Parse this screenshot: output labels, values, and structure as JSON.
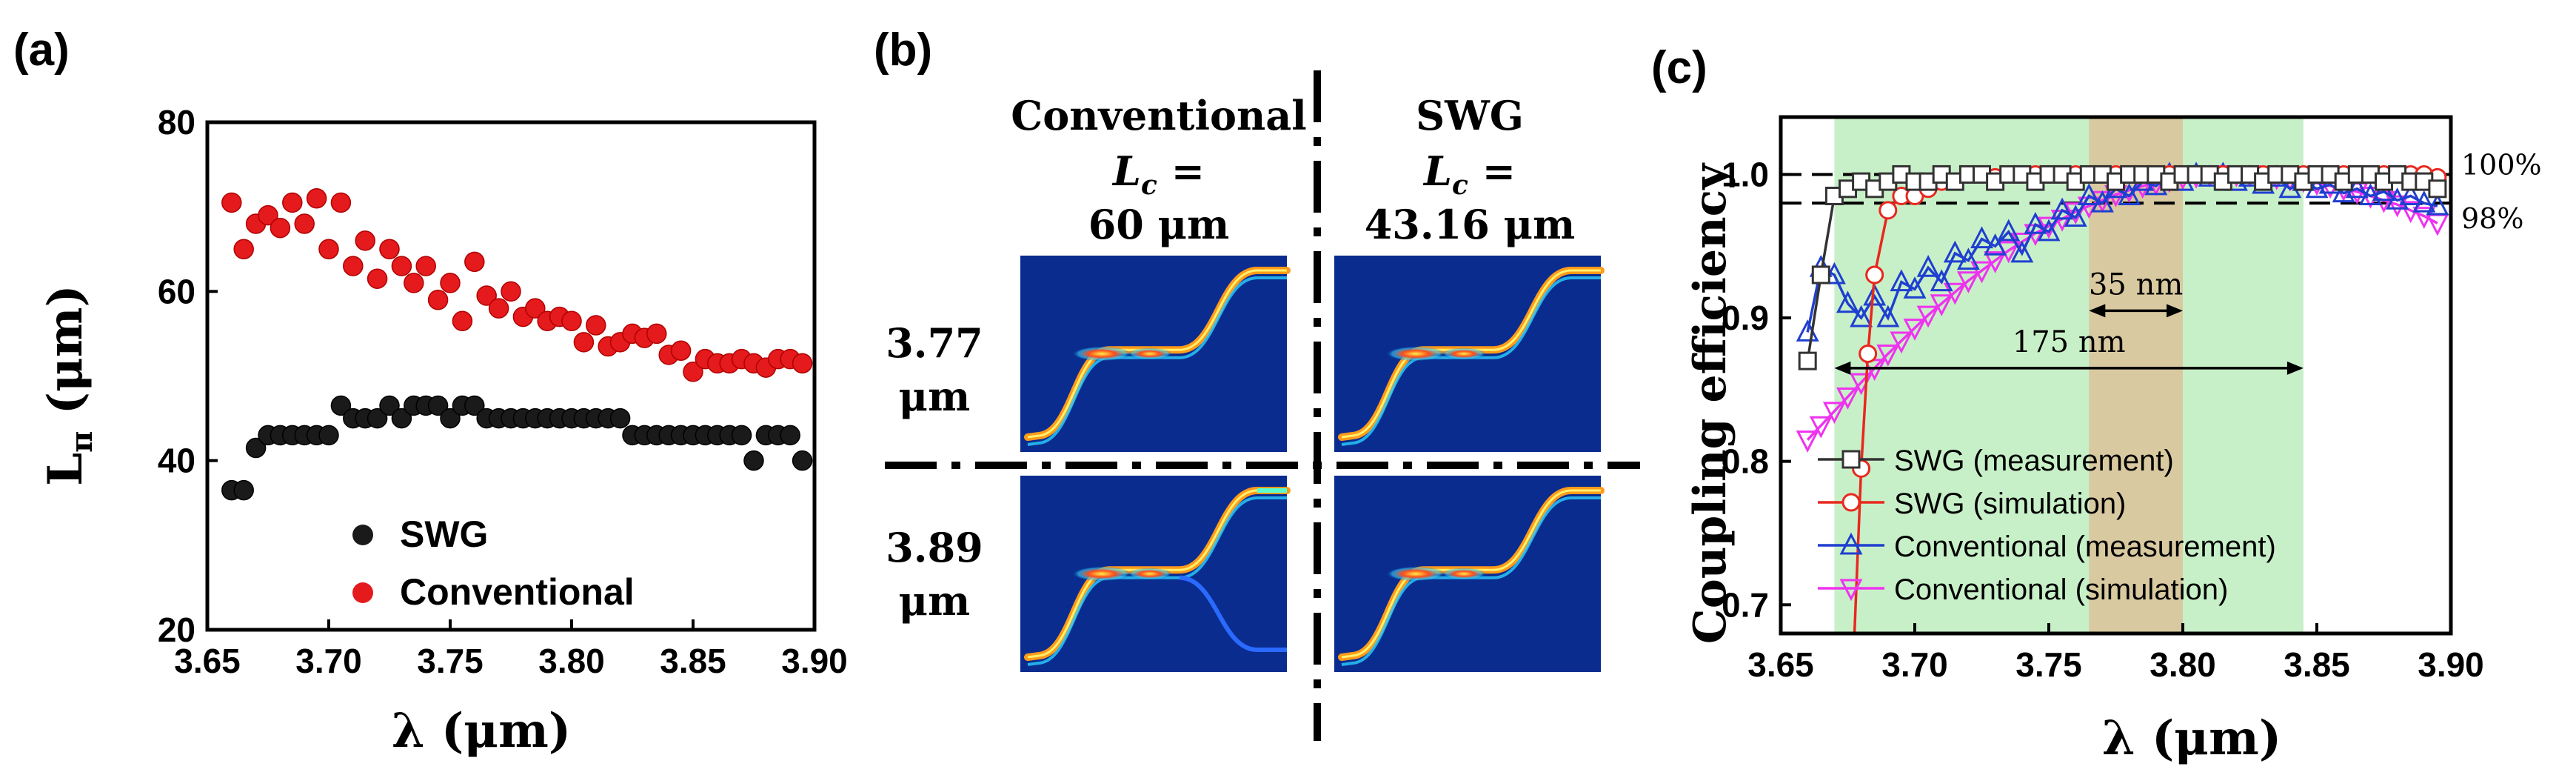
{
  "panels": {
    "a": {
      "label": "(a)"
    },
    "b": {
      "label": "(b)"
    },
    "c": {
      "label": "(c)"
    }
  },
  "colors": {
    "swg_a": "#1a1a1a",
    "conv_a": "#e41a1c",
    "swg_meas": "#333333",
    "swg_sim": "#e8281e",
    "conv_meas": "#1f3fd0",
    "conv_sim": "#ee33ee",
    "band_green": "#c8f0c8",
    "band_tan": "#d9c9a0",
    "field_bg": "#0a2c8f"
  },
  "panel_b": {
    "conventional": {
      "title": "Conventional",
      "lc_var": "L",
      "lc_sub": "c",
      "lc_eq": " =",
      "lc_val": "60 μm"
    },
    "swg": {
      "title": "SWG",
      "lc_var": "L",
      "lc_sub": "c",
      "lc_eq": " =",
      "lc_val": "43.16 μm"
    },
    "rows": [
      {
        "wl": "3.77",
        "unit": "μm"
      },
      {
        "wl": "3.89",
        "unit": "μm"
      }
    ]
  },
  "chart_data": [
    {
      "type": "scatter",
      "panel": "a",
      "xlabel": "λ (μm)",
      "ylabel_main": "L",
      "ylabel_sub": "π",
      "ylabel_unit": " (μm)",
      "xlim": [
        3.65,
        3.9
      ],
      "ylim": [
        20,
        80
      ],
      "xticks": [
        "3.65",
        "3.70",
        "3.75",
        "3.80",
        "3.85",
        "3.90"
      ],
      "yticks": [
        "20",
        "40",
        "60",
        "80"
      ],
      "legend_position": "bottom-left",
      "series": [
        {
          "name": "SWG",
          "x": [
            3.66,
            3.665,
            3.67,
            3.675,
            3.68,
            3.685,
            3.69,
            3.695,
            3.7,
            3.705,
            3.71,
            3.715,
            3.72,
            3.725,
            3.73,
            3.735,
            3.74,
            3.745,
            3.75,
            3.755,
            3.76,
            3.765,
            3.77,
            3.775,
            3.78,
            3.785,
            3.79,
            3.795,
            3.8,
            3.805,
            3.81,
            3.815,
            3.82,
            3.825,
            3.83,
            3.835,
            3.84,
            3.845,
            3.85,
            3.855,
            3.86,
            3.865,
            3.87,
            3.875,
            3.88,
            3.885,
            3.89,
            3.895
          ],
          "y": [
            36.5,
            36.5,
            41.5,
            43,
            43,
            43,
            43,
            43,
            43,
            46.5,
            45,
            45,
            45,
            46.5,
            45,
            46.5,
            46.5,
            46.5,
            45,
            46.5,
            46.5,
            45,
            45,
            45,
            45,
            45,
            45,
            45,
            45,
            45,
            45,
            45,
            45,
            43,
            43,
            43,
            43,
            43,
            43,
            43,
            43,
            43,
            43,
            40,
            43,
            43,
            43,
            40
          ]
        },
        {
          "name": "Conventional",
          "x": [
            3.66,
            3.665,
            3.67,
            3.675,
            3.68,
            3.685,
            3.69,
            3.695,
            3.7,
            3.705,
            3.71,
            3.715,
            3.72,
            3.725,
            3.73,
            3.735,
            3.74,
            3.745,
            3.75,
            3.755,
            3.76,
            3.765,
            3.77,
            3.775,
            3.78,
            3.785,
            3.79,
            3.795,
            3.8,
            3.805,
            3.81,
            3.815,
            3.82,
            3.825,
            3.83,
            3.835,
            3.84,
            3.845,
            3.85,
            3.855,
            3.86,
            3.865,
            3.87,
            3.875,
            3.88,
            3.885,
            3.89,
            3.895
          ],
          "y": [
            70.5,
            65,
            68,
            69,
            67.5,
            70.5,
            68,
            71,
            65,
            70.5,
            63,
            66,
            61.5,
            65,
            63,
            61,
            63,
            59,
            61,
            56.5,
            63.5,
            59.5,
            58,
            60,
            57,
            58,
            56.5,
            57,
            56.5,
            54,
            56,
            53.5,
            54,
            55,
            54.5,
            55,
            52.5,
            53,
            50.5,
            52,
            51.5,
            51.5,
            52,
            51.5,
            51,
            52,
            52,
            51.5
          ]
        }
      ]
    },
    {
      "type": "line",
      "panel": "c",
      "xlabel": "λ (μm)",
      "ylabel": "Coupling efficiency",
      "xlim": [
        3.65,
        3.9
      ],
      "ylim": [
        0.68,
        1.04
      ],
      "xticks": [
        "3.65",
        "3.70",
        "3.75",
        "3.80",
        "3.85",
        "3.90"
      ],
      "yticks": [
        "0.7",
        "0.8",
        "0.9",
        "1.0"
      ],
      "ref_lines": [
        {
          "y": 1.0,
          "label": "100%"
        },
        {
          "y": 0.98,
          "label": "98%"
        }
      ],
      "bands": [
        {
          "x0": 3.67,
          "x1": 3.845
        },
        {
          "x0": 3.765,
          "x1": 3.8
        }
      ],
      "annotations": [
        {
          "text": "35 nm",
          "x0": 3.765,
          "x1": 3.8,
          "y": 0.905
        },
        {
          "text": "175 nm",
          "x0": 3.67,
          "x1": 3.845,
          "y": 0.865
        }
      ],
      "legend_position": "bottom-left",
      "series": [
        {
          "name": "SWG (measurement)",
          "marker": "square",
          "x": [
            3.66,
            3.665,
            3.67,
            3.675,
            3.68,
            3.685,
            3.69,
            3.695,
            3.7,
            3.705,
            3.71,
            3.715,
            3.72,
            3.725,
            3.73,
            3.735,
            3.74,
            3.745,
            3.75,
            3.755,
            3.76,
            3.765,
            3.77,
            3.775,
            3.78,
            3.785,
            3.79,
            3.795,
            3.8,
            3.805,
            3.81,
            3.815,
            3.82,
            3.825,
            3.83,
            3.835,
            3.84,
            3.845,
            3.85,
            3.855,
            3.86,
            3.865,
            3.87,
            3.875,
            3.88,
            3.885,
            3.89,
            3.895
          ],
          "y": [
            0.87,
            0.93,
            0.985,
            0.99,
            0.995,
            0.99,
            0.995,
            1.0,
            0.995,
            0.995,
            1.0,
            0.995,
            1.0,
            1.0,
            0.995,
            1.0,
            1.0,
            0.995,
            1.0,
            1.0,
            0.995,
            1.0,
            1.0,
            0.995,
            1.0,
            1.0,
            1.0,
            0.995,
            1.0,
            1.0,
            1.0,
            0.995,
            1.0,
            1.0,
            0.995,
            1.0,
            1.0,
            0.995,
            1.0,
            1.0,
            0.995,
            1.0,
            1.0,
            0.995,
            1.0,
            0.995,
            0.995,
            0.99
          ]
        },
        {
          "name": "SWG (simulation)",
          "marker": "circle",
          "x": [
            3.6775,
            3.68,
            3.6825,
            3.685,
            3.69,
            3.695,
            3.7,
            3.705,
            3.71,
            3.715,
            3.72,
            3.725,
            3.73,
            3.735,
            3.74,
            3.745,
            3.75,
            3.755,
            3.76,
            3.765,
            3.77,
            3.775,
            3.78,
            3.785,
            3.79,
            3.795,
            3.8,
            3.805,
            3.81,
            3.815,
            3.82,
            3.825,
            3.83,
            3.835,
            3.84,
            3.845,
            3.85,
            3.855,
            3.86,
            3.865,
            3.87,
            3.875,
            3.88,
            3.885,
            3.89,
            3.895
          ],
          "y": [
            0.68,
            0.795,
            0.875,
            0.93,
            0.975,
            0.985,
            0.985,
            0.99,
            0.995,
            0.995,
            1.0,
            1.0,
            0.998,
            1.0,
            1.0,
            1.0,
            1.0,
            1.0,
            1.0,
            1.0,
            1.0,
            1.0,
            1.0,
            1.0,
            1.0,
            1.0,
            1.0,
            1.0,
            1.0,
            1.0,
            1.0,
            1.0,
            1.0,
            1.0,
            1.0,
            1.0,
            1.0,
            1.0,
            1.0,
            1.0,
            1.0,
            1.0,
            1.0,
            1.0,
            1.0,
            0.998
          ]
        },
        {
          "name": "Conventional (measurement)",
          "marker": "triangle-up",
          "x": [
            3.66,
            3.665,
            3.67,
            3.675,
            3.68,
            3.685,
            3.69,
            3.695,
            3.7,
            3.705,
            3.71,
            3.715,
            3.72,
            3.725,
            3.73,
            3.735,
            3.74,
            3.745,
            3.75,
            3.755,
            3.76,
            3.765,
            3.77,
            3.775,
            3.78,
            3.785,
            3.79,
            3.795,
            3.8,
            3.805,
            3.81,
            3.815,
            3.82,
            3.825,
            3.83,
            3.835,
            3.84,
            3.845,
            3.85,
            3.855,
            3.86,
            3.865,
            3.87,
            3.875,
            3.88,
            3.885,
            3.89,
            3.895
          ],
          "y": [
            0.89,
            0.935,
            0.93,
            0.91,
            0.9,
            0.915,
            0.9,
            0.925,
            0.92,
            0.935,
            0.925,
            0.945,
            0.94,
            0.955,
            0.95,
            0.96,
            0.945,
            0.965,
            0.96,
            0.975,
            0.97,
            0.985,
            0.98,
            0.99,
            0.985,
            0.995,
            0.992,
            1.0,
            0.995,
            1.0,
            0.998,
            1.0,
            0.995,
            0.998,
            0.993,
            0.998,
            0.99,
            0.995,
            0.99,
            0.993,
            0.987,
            0.99,
            0.985,
            0.988,
            0.982,
            0.985,
            0.98,
            0.978
          ]
        },
        {
          "name": "Conventional (simulation)",
          "marker": "triangle-down",
          "x": [
            3.66,
            3.665,
            3.67,
            3.675,
            3.68,
            3.685,
            3.69,
            3.695,
            3.7,
            3.705,
            3.71,
            3.715,
            3.72,
            3.725,
            3.73,
            3.735,
            3.74,
            3.745,
            3.75,
            3.755,
            3.76,
            3.765,
            3.77,
            3.775,
            3.78,
            3.785,
            3.79,
            3.795,
            3.8,
            3.805,
            3.81,
            3.815,
            3.82,
            3.825,
            3.83,
            3.835,
            3.84,
            3.845,
            3.85,
            3.855,
            3.86,
            3.865,
            3.87,
            3.875,
            3.88,
            3.885,
            3.89,
            3.895
          ],
          "y": [
            0.815,
            0.825,
            0.835,
            0.845,
            0.855,
            0.865,
            0.875,
            0.884,
            0.893,
            0.902,
            0.91,
            0.918,
            0.926,
            0.933,
            0.94,
            0.947,
            0.953,
            0.959,
            0.964,
            0.969,
            0.974,
            0.978,
            0.982,
            0.986,
            0.989,
            0.992,
            0.994,
            0.996,
            0.998,
            0.999,
            1.0,
            1.0,
            1.0,
            1.0,
            0.999,
            0.998,
            0.997,
            0.996,
            0.994,
            0.992,
            0.99,
            0.988,
            0.985,
            0.982,
            0.979,
            0.975,
            0.971,
            0.966
          ]
        }
      ]
    }
  ]
}
